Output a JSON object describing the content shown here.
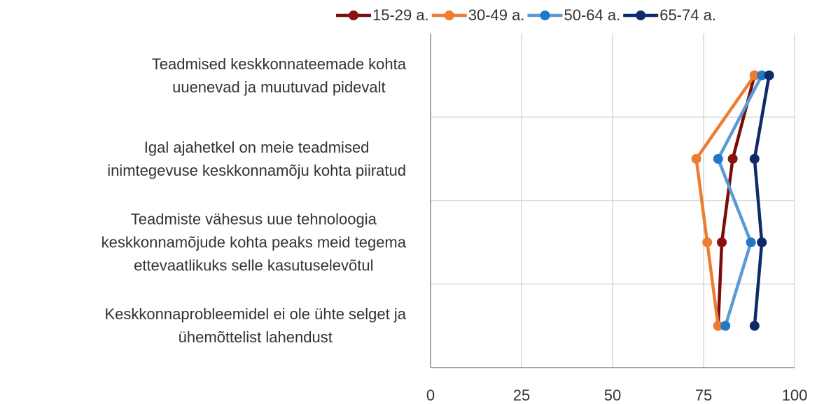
{
  "chart_data": {
    "type": "line",
    "orientation": "horizontal",
    "categories": [
      "Teadmised keskkonnateemade kohta\nuuenevad ja muutuvad pidevalt",
      "Igal ajahetkel on meie teadmised\ninimtegevuse keskkonnamõju kohta piiratud",
      "Teadmiste vähesus uue tehnoloogia\nkeskkonnamõjude kohta peaks meid tegema\nettevaatlikuks selle kasutuselevõtul",
      "Keskkonnaprobleemidel ei ole ühte selget ja\nühemõttelist lahendust"
    ],
    "series": [
      {
        "name": "15-29 a.",
        "color": "#7b0c0c",
        "marker_color": "#8b1010",
        "values": [
          89,
          83,
          80,
          79
        ]
      },
      {
        "name": "30-49 a.",
        "color": "#ed7d31",
        "marker_color": "#ed7d31",
        "values": [
          89,
          73,
          76,
          79
        ]
      },
      {
        "name": "50-64 a.",
        "color": "#5b9bd5",
        "marker_color": "#1f78c8",
        "values": [
          91,
          79,
          88,
          81
        ]
      },
      {
        "name": "65-74 a.",
        "color": "#0d2a6b",
        "marker_color": "#0d2a6b",
        "values": [
          93,
          89,
          91,
          89
        ]
      }
    ],
    "xlim": [
      0,
      100
    ],
    "xticks": [
      0,
      25,
      50,
      75,
      100
    ],
    "grid": true,
    "legend": "top"
  }
}
